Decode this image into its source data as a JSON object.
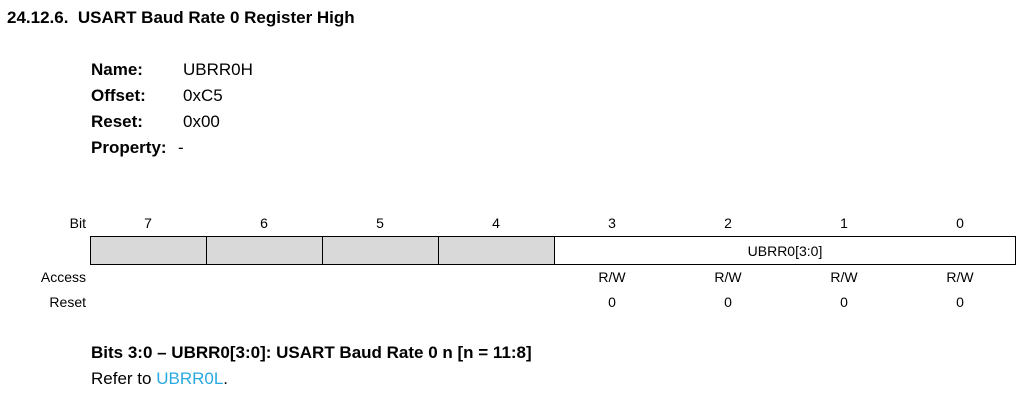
{
  "section": {
    "number": "24.12.6.",
    "title": "USART Baud Rate 0 Register High"
  },
  "properties": [
    {
      "key": "Name:",
      "value": "UBRR0H"
    },
    {
      "key": "Offset:",
      "value": "0xC5"
    },
    {
      "key": "Reset:",
      "value": "0x00"
    },
    {
      "key": "Property:",
      "value": "-"
    }
  ],
  "register": {
    "bit_label": "Bit",
    "bits": [
      "7",
      "6",
      "5",
      "4",
      "3",
      "2",
      "1",
      "0"
    ],
    "field_name": "UBRR0[3:0]",
    "access_label": "Access",
    "access": [
      "",
      "",
      "",
      "",
      "R/W",
      "R/W",
      "R/W",
      "R/W"
    ],
    "reset_label": "Reset",
    "reset": [
      "",
      "",
      "",
      "",
      "0",
      "0",
      "0",
      "0"
    ]
  },
  "description": {
    "title": "Bits 3:0 – UBRR0[3:0]:  USART Baud Rate 0 n [n = 11:8]",
    "refer_prefix": "Refer to ",
    "refer_link": "UBRR0L",
    "refer_suffix": "."
  }
}
